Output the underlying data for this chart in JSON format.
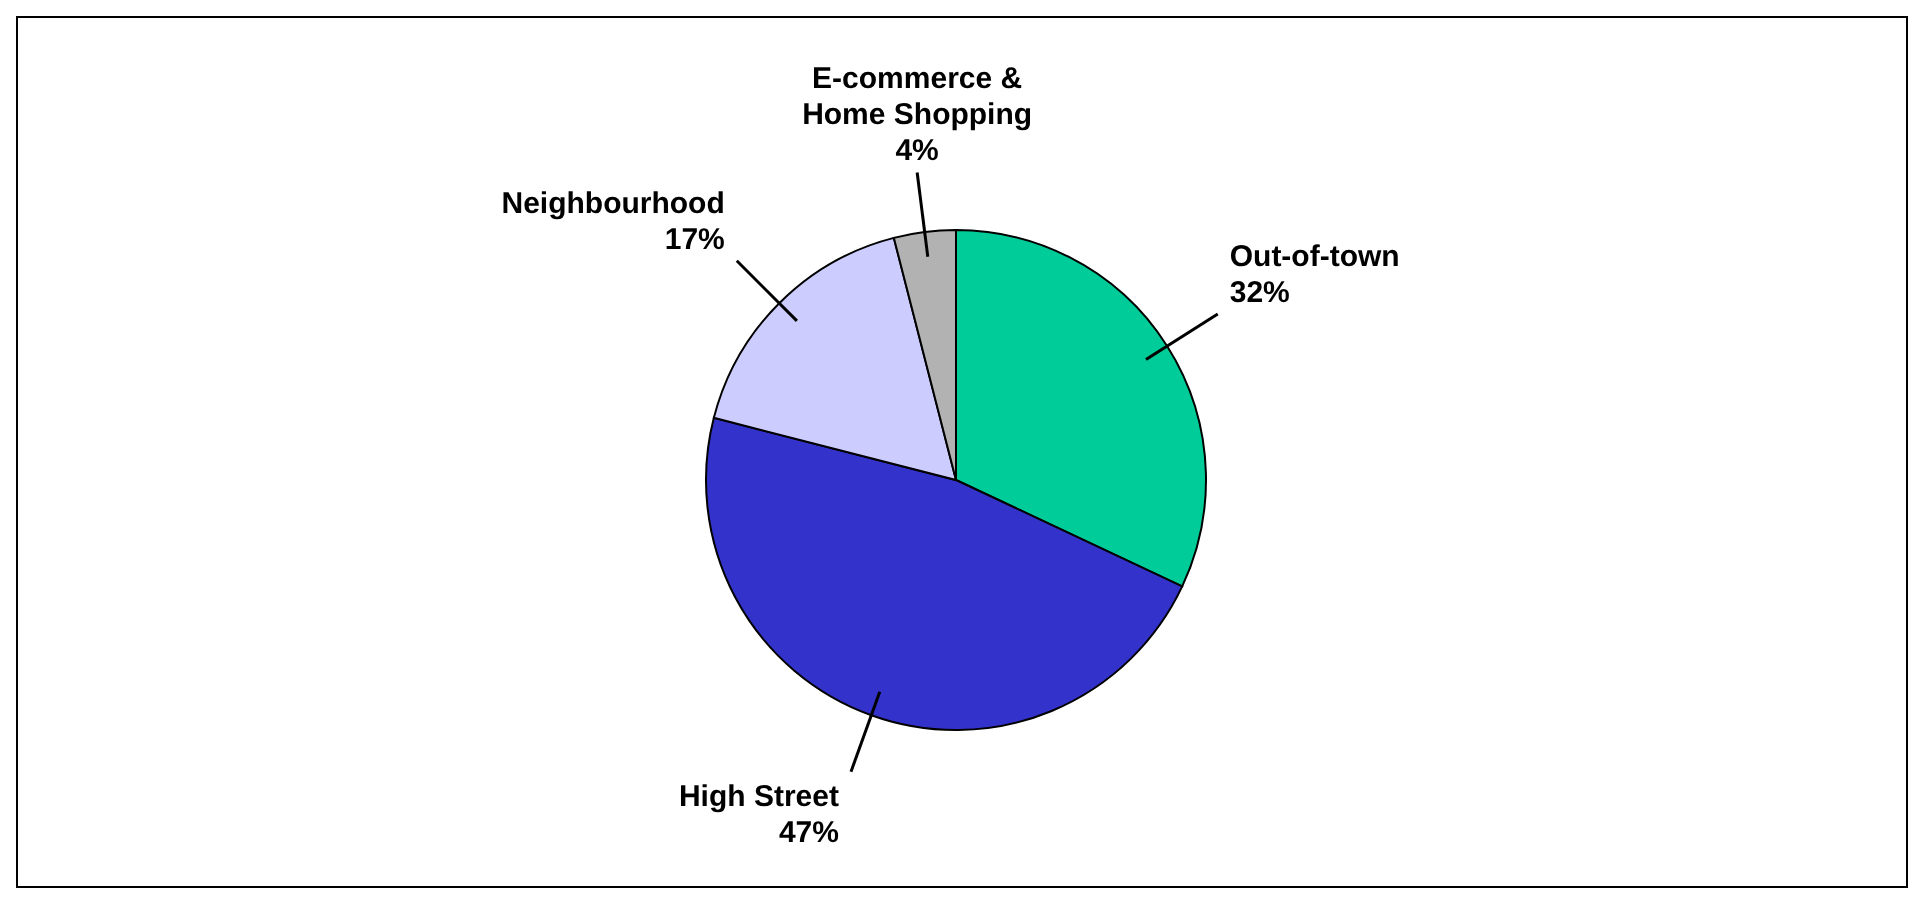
{
  "chart_data": {
    "type": "pie",
    "categories": [
      "Out-of-town",
      "High Street",
      "Neighbourhood",
      "E-commerce & Home Shopping"
    ],
    "values": [
      32,
      47,
      17,
      4
    ],
    "colors": [
      "#00cc99",
      "#3333cc",
      "#ccccff",
      "#b2b2b2"
    ],
    "value_labels": [
      "32%",
      "47%",
      "17%",
      "4%"
    ]
  }
}
